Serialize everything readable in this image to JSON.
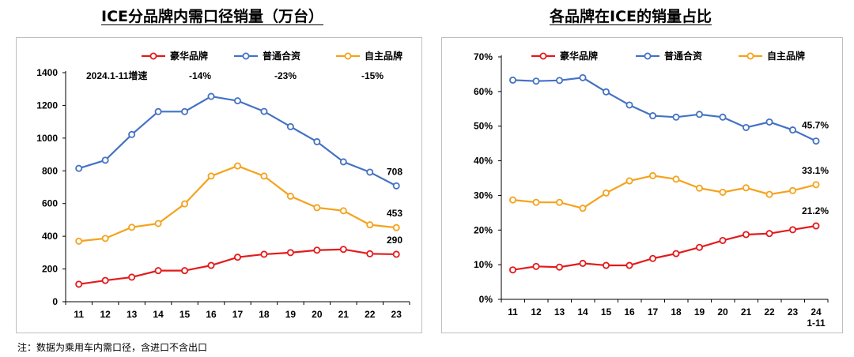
{
  "titles": {
    "left": "ICE分品牌内需口径销量（万台）",
    "right": "各品牌在ICE的销量占比"
  },
  "footnote": "注：数据为乘用车内需口径，含进口不含出口",
  "colors": {
    "luxury": "#e31a1c",
    "joint": "#4472c4",
    "domestic": "#f5a21b"
  },
  "chart_data": [
    {
      "type": "line",
      "title": "ICE分品牌内需口径销量（万台）",
      "categories": [
        "11",
        "12",
        "13",
        "14",
        "15",
        "16",
        "17",
        "18",
        "19",
        "20",
        "21",
        "22",
        "23"
      ],
      "ylim": [
        0,
        1400
      ],
      "yticks": [
        0,
        200,
        400,
        600,
        800,
        1000,
        1200,
        1400
      ],
      "grid": false,
      "legend": "top",
      "series": [
        {
          "name": "豪华品牌",
          "color": "#e31a1c",
          "values": [
            107,
            130,
            150,
            190,
            190,
            222,
            272,
            290,
            300,
            315,
            320,
            293,
            290
          ]
        },
        {
          "name": "普通合资",
          "color": "#4472c4",
          "values": [
            815,
            865,
            1022,
            1162,
            1162,
            1255,
            1228,
            1163,
            1070,
            978,
            855,
            792,
            708
          ]
        },
        {
          "name": "自主品牌",
          "color": "#f5a21b",
          "values": [
            370,
            387,
            455,
            478,
            598,
            768,
            830,
            768,
            645,
            575,
            556,
            470,
            453
          ]
        }
      ],
      "end_labels": [
        "290",
        "708",
        "453"
      ],
      "annotations": [
        "2024.1-11增速",
        "-14%",
        "-23%",
        "-15%"
      ]
    },
    {
      "type": "line",
      "title": "各品牌在ICE的销量占比",
      "categories": [
        "11",
        "12",
        "13",
        "14",
        "15",
        "16",
        "17",
        "18",
        "19",
        "20",
        "21",
        "22",
        "23",
        "24 1-11"
      ],
      "ylim": [
        0,
        70
      ],
      "yticks": [
        "0%",
        "10%",
        "20%",
        "30%",
        "40%",
        "50%",
        "60%",
        "70%"
      ],
      "grid": false,
      "legend": "top",
      "series": [
        {
          "name": "豪华品牌",
          "color": "#e31a1c",
          "values": [
            8.5,
            9.5,
            9.3,
            10.4,
            9.8,
            9.8,
            11.8,
            13.2,
            15.0,
            17.0,
            18.7,
            19.0,
            20.1,
            21.2
          ]
        },
        {
          "name": "普通合资",
          "color": "#4472c4",
          "values": [
            63.3,
            63.0,
            63.2,
            64.0,
            59.9,
            56.1,
            53.0,
            52.6,
            53.4,
            52.6,
            49.6,
            51.2,
            48.9,
            45.7
          ]
        },
        {
          "name": "自主品牌",
          "color": "#f5a21b",
          "values": [
            28.7,
            28.0,
            28.0,
            26.3,
            30.7,
            34.2,
            35.7,
            34.7,
            32.1,
            30.9,
            32.2,
            30.3,
            31.4,
            33.1
          ]
        }
      ],
      "end_labels": [
        "21.2%",
        "45.7%",
        "33.1%"
      ]
    }
  ]
}
